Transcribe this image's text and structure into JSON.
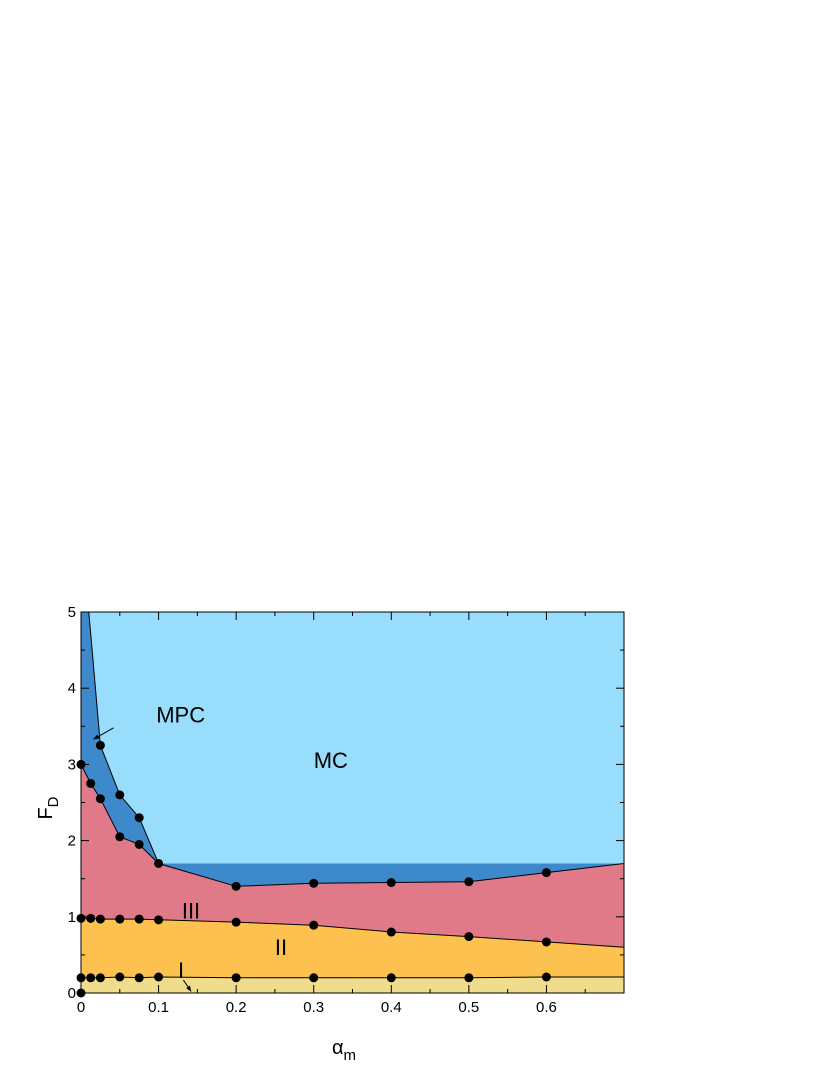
{
  "chart_data": {
    "type": "area",
    "xlabel": "α",
    "xlabel_sub": "m",
    "ylabel": "F",
    "ylabel_sub": "D",
    "xlim": [
      0,
      0.7
    ],
    "ylim": [
      0,
      5
    ],
    "xticks": [
      "0",
      "0.1",
      "0.2",
      "0.3",
      "0.4",
      "0.5",
      "0.6"
    ],
    "xtick_values": [
      0,
      0.1,
      0.2,
      0.3,
      0.4,
      0.5,
      0.6
    ],
    "yticks": [
      "0",
      "1",
      "2",
      "3",
      "4",
      "5"
    ],
    "ytick_values": [
      0,
      1,
      2,
      3,
      4,
      5
    ],
    "grid": false,
    "regions": [
      {
        "label": "MC",
        "color": "#99ddfc"
      },
      {
        "label": "MPC",
        "color": "#3d89cb"
      },
      {
        "label": "III",
        "color": "#e07988"
      },
      {
        "label": "II",
        "color": "#fdc14f"
      },
      {
        "label": "I",
        "color": "#f0dc8d"
      }
    ],
    "boundaries": {
      "I_II": [
        [
          0,
          0.2
        ],
        [
          0.0125,
          0.2
        ],
        [
          0.025,
          0.2
        ],
        [
          0.05,
          0.21
        ],
        [
          0.075,
          0.2
        ],
        [
          0.1,
          0.21
        ],
        [
          0.2,
          0.2
        ],
        [
          0.3,
          0.2
        ],
        [
          0.4,
          0.2
        ],
        [
          0.5,
          0.2
        ],
        [
          0.6,
          0.21
        ],
        [
          0.7,
          0.21
        ]
      ],
      "II_III": [
        [
          0,
          0.98
        ],
        [
          0.0125,
          0.98
        ],
        [
          0.025,
          0.97
        ],
        [
          0.05,
          0.97
        ],
        [
          0.075,
          0.97
        ],
        [
          0.1,
          0.96
        ],
        [
          0.2,
          0.93
        ],
        [
          0.3,
          0.89
        ],
        [
          0.4,
          0.8
        ],
        [
          0.5,
          0.74
        ],
        [
          0.6,
          0.67
        ],
        [
          0.7,
          0.6
        ]
      ],
      "III_upper": [
        [
          0,
          3.0
        ],
        [
          0.0125,
          2.75
        ],
        [
          0.025,
          2.55
        ],
        [
          0.05,
          2.05
        ],
        [
          0.075,
          1.95
        ],
        [
          0.1,
          1.7
        ],
        [
          0.2,
          1.4
        ],
        [
          0.3,
          1.44
        ],
        [
          0.4,
          1.45
        ],
        [
          0.5,
          1.46
        ],
        [
          0.6,
          1.58
        ],
        [
          0.7,
          1.7
        ]
      ],
      "MPC_MC": [
        [
          0.01,
          5.0
        ],
        [
          0.025,
          3.25
        ],
        [
          0.05,
          2.6
        ],
        [
          0.075,
          2.3
        ],
        [
          0.1,
          1.7
        ]
      ]
    },
    "points": [
      [
        0,
        0
      ],
      [
        0,
        0.2
      ],
      [
        0.0125,
        0.2
      ],
      [
        0.025,
        0.2
      ],
      [
        0.05,
        0.21
      ],
      [
        0.075,
        0.2
      ],
      [
        0.1,
        0.21
      ],
      [
        0.2,
        0.2
      ],
      [
        0.3,
        0.2
      ],
      [
        0.4,
        0.2
      ],
      [
        0.5,
        0.2
      ],
      [
        0.6,
        0.21
      ],
      [
        0,
        0.98
      ],
      [
        0.0125,
        0.98
      ],
      [
        0.025,
        0.97
      ],
      [
        0.05,
        0.97
      ],
      [
        0.075,
        0.97
      ],
      [
        0.1,
        0.96
      ],
      [
        0.2,
        0.93
      ],
      [
        0.3,
        0.89
      ],
      [
        0.4,
        0.8
      ],
      [
        0.5,
        0.74
      ],
      [
        0.6,
        0.67
      ],
      [
        0,
        3.0
      ],
      [
        0.0125,
        2.75
      ],
      [
        0.025,
        2.55
      ],
      [
        0.05,
        2.05
      ],
      [
        0.075,
        1.95
      ],
      [
        0.1,
        1.7
      ],
      [
        0.2,
        1.4
      ],
      [
        0.3,
        1.44
      ],
      [
        0.4,
        1.45
      ],
      [
        0.5,
        1.46
      ],
      [
        0.6,
        1.58
      ],
      [
        0.025,
        3.25
      ],
      [
        0.05,
        2.6
      ],
      [
        0.075,
        2.3
      ]
    ],
    "annotations": [
      {
        "text": "MC",
        "x": 0.3,
        "y": 2.95
      },
      {
        "text": "MPC",
        "x": 0.097,
        "y": 3.55
      },
      {
        "text": "III",
        "x": 0.13,
        "y": 0.98
      },
      {
        "text": "II",
        "x": 0.25,
        "y": 0.5
      },
      {
        "text": "I",
        "x": 0.125,
        "y": 0.2
      }
    ]
  }
}
